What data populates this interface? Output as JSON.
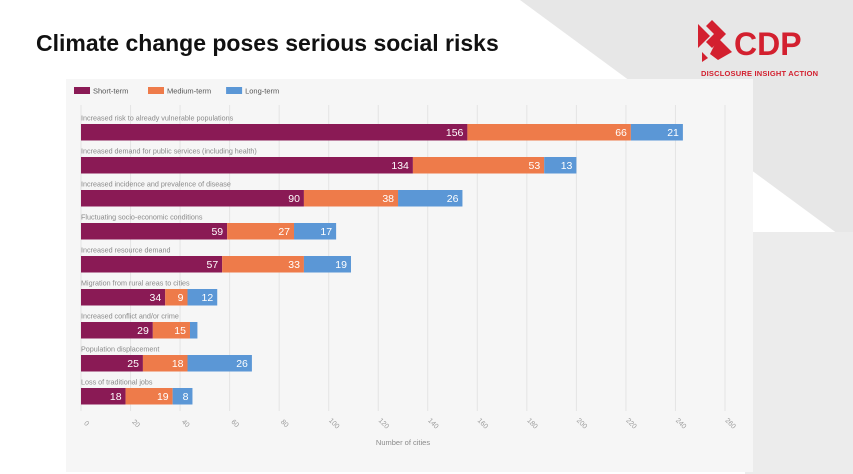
{
  "slide": {
    "title": "Climate change poses serious social risks"
  },
  "logo": {
    "name": "CDP",
    "tagline": "DISCLOSURE INSIGHT ACTION",
    "color": "#d3202f"
  },
  "chart_data": {
    "type": "bar",
    "orientation": "horizontal",
    "stacked": true,
    "categories": [
      "Increased risk to already vulnerable populations",
      "Increased demand for public services (including health)",
      "Increased incidence and prevalence of disease",
      "Fluctuating socio-economic conditions",
      "Increased resource demand",
      "Migration from rural areas to cities",
      "Increased conflict and/or crime",
      "Population displacement",
      "Loss of traditional jobs"
    ],
    "series": [
      {
        "name": "Short-term",
        "color": "#8a1a55",
        "values": [
          156,
          134,
          90,
          59,
          57,
          34,
          29,
          25,
          18
        ]
      },
      {
        "name": "Medium-term",
        "color": "#ee7b4a",
        "values": [
          66,
          53,
          38,
          27,
          33,
          9,
          15,
          18,
          19
        ]
      },
      {
        "name": "Long-term",
        "color": "#5b97d6",
        "values": [
          21,
          13,
          26,
          17,
          19,
          12,
          3,
          26,
          8
        ]
      }
    ],
    "value_labels_shown": [
      [
        true,
        true,
        true,
        true,
        true,
        true,
        true,
        true,
        true
      ],
      [
        true,
        true,
        true,
        true,
        true,
        true,
        true,
        true,
        true
      ],
      [
        true,
        true,
        true,
        true,
        true,
        true,
        false,
        true,
        true
      ]
    ],
    "xlabel": "Number of cities",
    "ylabel": "",
    "xlim": [
      0,
      260
    ],
    "xticks": [
      "0",
      "20",
      "40",
      "60",
      "80",
      "100",
      "120",
      "140",
      "160",
      "180",
      "200",
      "220",
      "240",
      "260"
    ],
    "grid": true,
    "legend_position": "top-left"
  }
}
